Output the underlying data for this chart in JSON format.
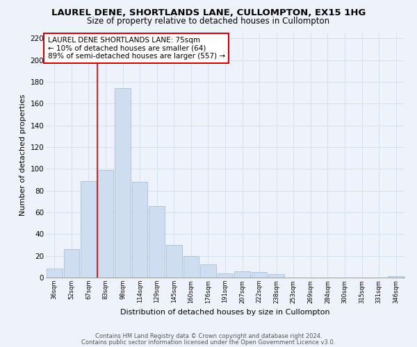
{
  "title": "LAUREL DENE, SHORTLANDS LANE, CULLOMPTON, EX15 1HG",
  "subtitle": "Size of property relative to detached houses in Cullompton",
  "xlabel": "Distribution of detached houses by size in Cullompton",
  "ylabel": "Number of detached properties",
  "bar_color": "#cfddf0",
  "bar_edge_color": "#a8bfd8",
  "categories": [
    "36sqm",
    "52sqm",
    "67sqm",
    "83sqm",
    "98sqm",
    "114sqm",
    "129sqm",
    "145sqm",
    "160sqm",
    "176sqm",
    "191sqm",
    "207sqm",
    "222sqm",
    "238sqm",
    "253sqm",
    "269sqm",
    "284sqm",
    "300sqm",
    "315sqm",
    "331sqm",
    "346sqm"
  ],
  "values": [
    8,
    26,
    89,
    99,
    174,
    88,
    66,
    30,
    20,
    12,
    4,
    6,
    5,
    3,
    0,
    0,
    0,
    0,
    0,
    0,
    1
  ],
  "ylim": [
    0,
    225
  ],
  "yticks": [
    0,
    20,
    40,
    60,
    80,
    100,
    120,
    140,
    160,
    180,
    200,
    220
  ],
  "vline_x": 2.5,
  "annotation_line1": "LAUREL DENE SHORTLANDS LANE: 75sqm",
  "annotation_line2": "← 10% of detached houses are smaller (64)",
  "annotation_line3": "89% of semi-detached houses are larger (557) →",
  "footnote1": "Contains HM Land Registry data © Crown copyright and database right 2024.",
  "footnote2": "Contains public sector information licensed under the Open Government Licence v3.0.",
  "grid_color": "#d4dff0",
  "background_color": "#eef2fb",
  "plot_bg_color": "#eef2fb"
}
